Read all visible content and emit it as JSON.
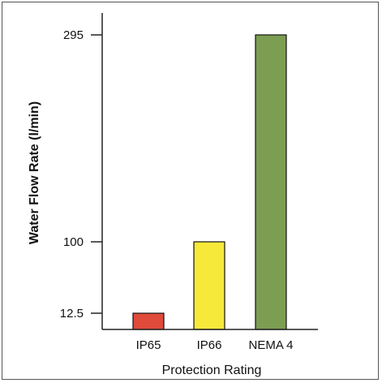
{
  "chart_data": {
    "type": "bar",
    "title": "",
    "xlabel": "Protection Rating",
    "ylabel": "Water Flow Rate (l/min)",
    "categories": [
      "IP65",
      "IP66",
      "NEMA 4"
    ],
    "values": [
      12.5,
      100,
      295
    ],
    "colors": [
      "#e04a3a",
      "#f7e93a",
      "#7c9e52"
    ],
    "yticks": [
      {
        "value": 12.5,
        "label": "12.5"
      },
      {
        "value": 100,
        "label": "100"
      },
      {
        "value": 295,
        "label": "295"
      }
    ],
    "ylim": [
      0,
      334
    ],
    "grid": false,
    "legend": "none"
  }
}
